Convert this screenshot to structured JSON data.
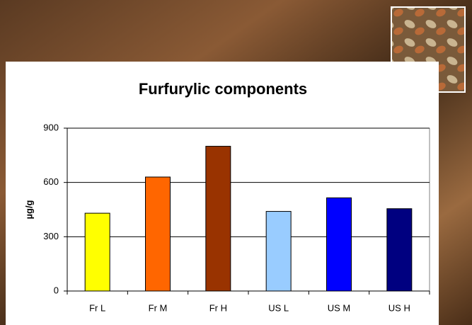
{
  "chart_data": {
    "type": "bar",
    "title": "Furfurylic components",
    "ylabel": "µg/g",
    "categories": [
      "Fr L",
      "Fr M",
      "Fr H",
      "US L",
      "US M",
      "US H"
    ],
    "values": [
      430,
      630,
      800,
      440,
      515,
      455
    ],
    "colors": [
      "#ffff00",
      "#ff6600",
      "#993300",
      "#99ccff",
      "#0000ff",
      "#000080"
    ],
    "ylim": [
      0,
      900
    ],
    "yticks": [
      0,
      300,
      600,
      900
    ],
    "grid": true
  }
}
